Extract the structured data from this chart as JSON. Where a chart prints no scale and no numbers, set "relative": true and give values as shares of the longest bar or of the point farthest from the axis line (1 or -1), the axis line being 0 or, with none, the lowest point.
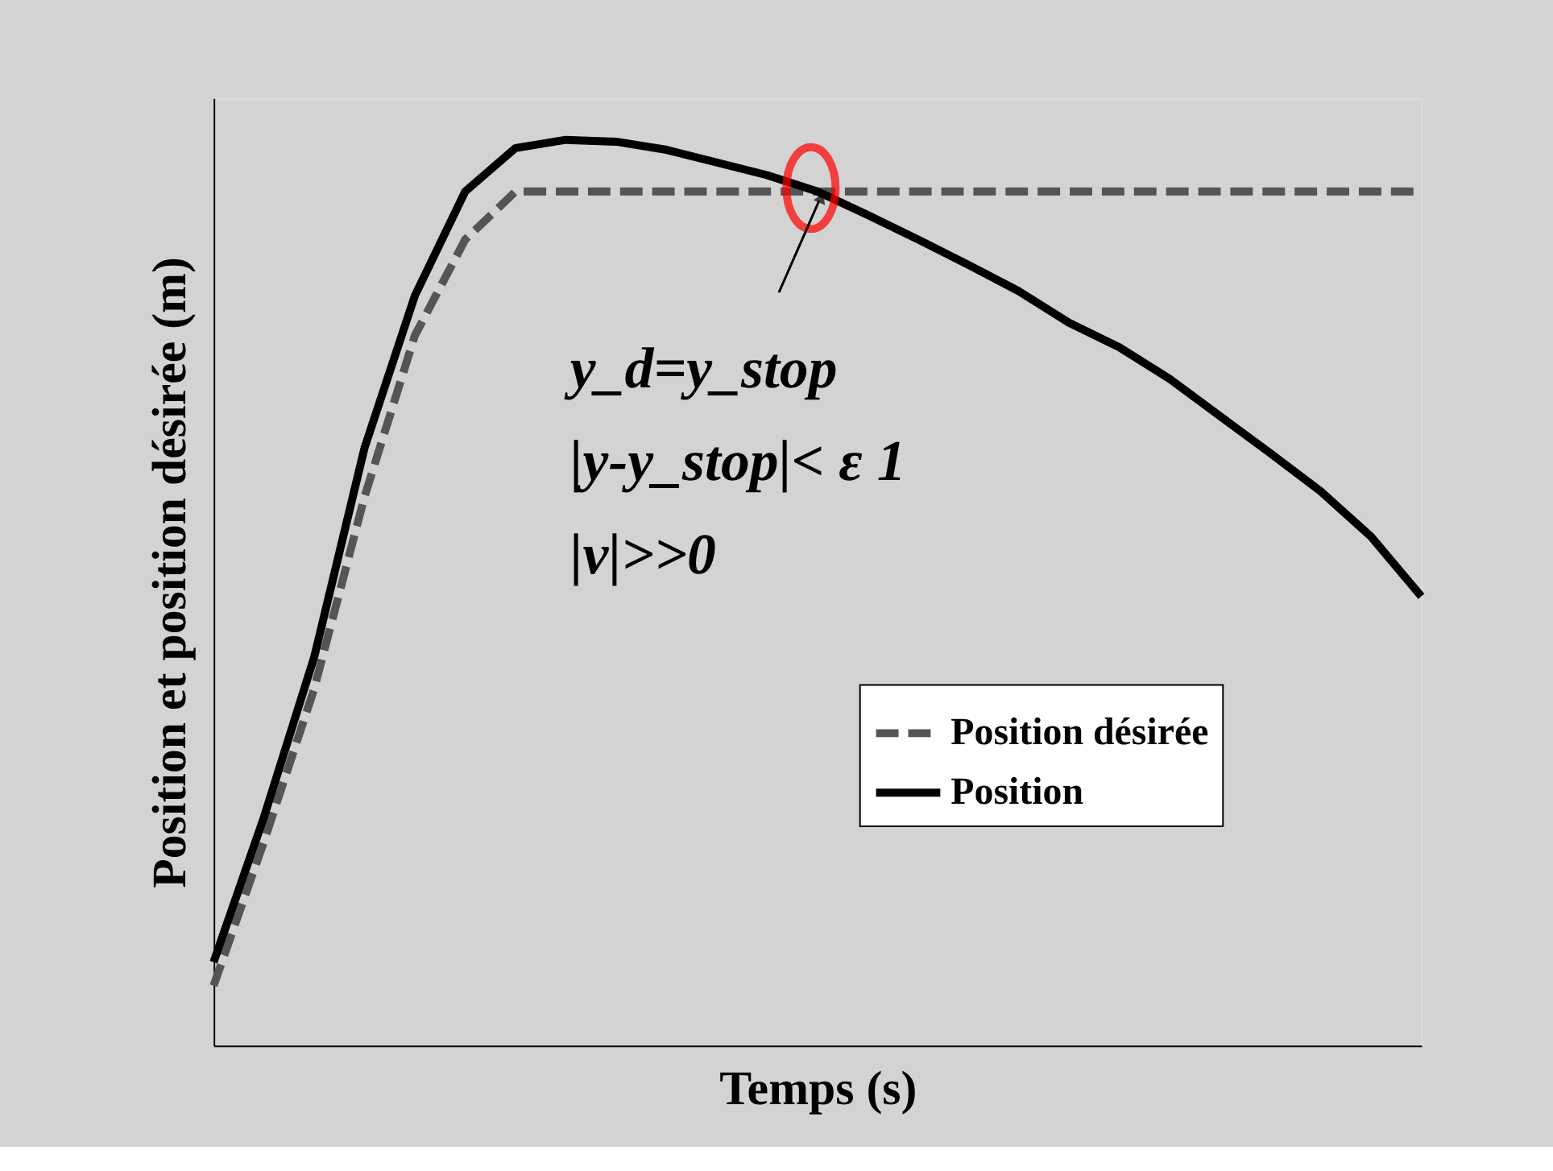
{
  "chart_data": {
    "type": "line",
    "relative": true,
    "xlabel": "Temps (s)",
    "ylabel": "Position et position désirée (m)",
    "categories": [
      null,
      null,
      null,
      null,
      null,
      null,
      null,
      null,
      null,
      null,
      null,
      null,
      null,
      null,
      null,
      null,
      null,
      null,
      null,
      null,
      null,
      null,
      null,
      null,
      null
    ],
    "series": [
      {
        "name": "Position désirée",
        "color": "#555555",
        "line_style": "dashed",
        "values": [
          0.066,
          0.225,
          0.394,
          0.606,
          0.784,
          0.89,
          0.943,
          0.943,
          0.943,
          0.943,
          0.943,
          0.943,
          0.943,
          0.943,
          0.943,
          0.943,
          0.943,
          0.943,
          0.943,
          0.943,
          0.943,
          0.943,
          0.943,
          0.943,
          0.943
        ]
      },
      {
        "name": "Position",
        "color": "#000000",
        "line_style": "solid",
        "values": [
          0.092,
          0.252,
          0.429,
          0.66,
          0.828,
          0.943,
          0.991,
          1.0,
          0.998,
          0.989,
          0.975,
          0.961,
          0.943,
          0.917,
          0.89,
          0.862,
          0.833,
          0.798,
          0.771,
          0.736,
          0.695,
          0.654,
          0.612,
          0.562,
          0.496
        ]
      }
    ],
    "annotations": [
      "y_d=y_stop",
      "|y-y_stop|< ε 1",
      "|v|>>0"
    ],
    "legend": "bottom right"
  }
}
